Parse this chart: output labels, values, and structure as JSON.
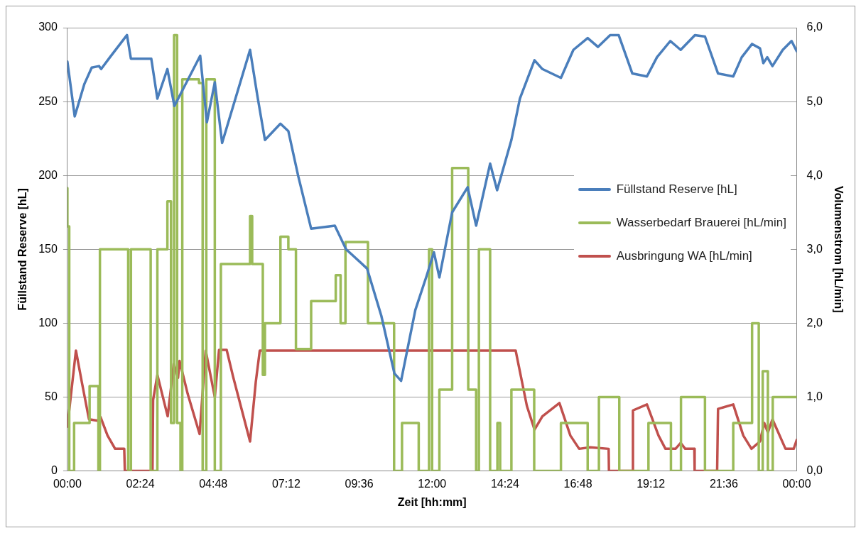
{
  "chart_data": {
    "type": "line",
    "xlabel": "Zeit [hh:mm]",
    "ylabel": "Füllstand Reserve [hL]",
    "y2label": "Volumenstrom [hL/min]",
    "xlim": [
      0,
      24
    ],
    "xticks": [
      {
        "value": 0,
        "label": "00:00"
      },
      {
        "value": 2.4,
        "label": "02:24"
      },
      {
        "value": 4.8,
        "label": "04:48"
      },
      {
        "value": 7.2,
        "label": "07:12"
      },
      {
        "value": 9.6,
        "label": "09:36"
      },
      {
        "value": 12,
        "label": "12:00"
      },
      {
        "value": 14.4,
        "label": "14:24"
      },
      {
        "value": 16.8,
        "label": "16:48"
      },
      {
        "value": 19.2,
        "label": "19:12"
      },
      {
        "value": 21.6,
        "label": "21:36"
      },
      {
        "value": 24,
        "label": "00:00"
      }
    ],
    "ylim": [
      0,
      300
    ],
    "yticks": [
      0,
      50,
      100,
      150,
      200,
      250,
      300
    ],
    "y2lim": [
      0,
      6
    ],
    "y2ticks": [
      {
        "value": 0,
        "label": "0,0"
      },
      {
        "value": 1,
        "label": "1,0"
      },
      {
        "value": 2,
        "label": "2,0"
      },
      {
        "value": 3,
        "label": "3,0"
      },
      {
        "value": 4,
        "label": "4,0"
      },
      {
        "value": 5,
        "label": "5,0"
      },
      {
        "value": 6,
        "label": "6,0"
      }
    ],
    "grid": "y",
    "legend": "right",
    "series": [
      {
        "name": "Füllstand Reserve [hL]",
        "color": "#4a7ebb",
        "type": "line",
        "x": [
          0,
          0.24,
          0.56,
          0.8,
          1.04,
          1.11,
          1.4,
          1.96,
          2.09,
          2.76,
          2.96,
          3.29,
          3.52,
          4.37,
          4.59,
          4.85,
          5.09,
          6.01,
          6.25,
          6.5,
          7.01,
          7.27,
          7.59,
          8.02,
          8.8,
          9.17,
          9.86,
          10.33,
          10.76,
          10.98,
          11.45,
          11.82,
          12.06,
          12.24,
          12.66,
          13.17,
          13.45,
          13.91,
          14.14,
          14.61,
          14.89,
          15.37,
          15.63,
          16.24,
          16.65,
          17.12,
          17.46,
          17.86,
          18.14,
          18.59,
          19.07,
          19.4,
          19.84,
          20.18,
          20.65,
          20.98,
          21.41,
          21.91,
          22.19,
          22.53,
          22.79,
          22.9,
          23.03,
          23.2,
          23.54,
          23.83,
          24
        ],
        "values": [
          277,
          240,
          262,
          273,
          274,
          272,
          280,
          295,
          279,
          279,
          252,
          272,
          247,
          281,
          236,
          263,
          222,
          285,
          254,
          224,
          235,
          230,
          200,
          164,
          166,
          150,
          137,
          105,
          66,
          61,
          109,
          132,
          148,
          131,
          175,
          192,
          166,
          208,
          190,
          224,
          252,
          278,
          272,
          266,
          285,
          293,
          287,
          295,
          295,
          269,
          267,
          280,
          291,
          285,
          295,
          294,
          269,
          267,
          280,
          289,
          286,
          276,
          280,
          274,
          285,
          291,
          284
        ]
      },
      {
        "name": "Wasserbedarf Brauerei [hL/min]",
        "color": "#9bbb59",
        "type": "step",
        "axis": "y2",
        "x": [
          0,
          0.06,
          0.22,
          0.73,
          1.02,
          1.07,
          2.0,
          2.09,
          2.74,
          2.96,
          3.29,
          3.41,
          3.51,
          3.61,
          3.72,
          3.78,
          4.33,
          4.45,
          4.57,
          4.85,
          5.05,
          6.01,
          6.08,
          6.43,
          6.5,
          7.01,
          7.27,
          7.52,
          8.02,
          8.83,
          8.99,
          9.15,
          9.89,
          10.75,
          11.01,
          11.56,
          11.9,
          12.0,
          12.24,
          12.66,
          13.19,
          13.45,
          13.54,
          13.91,
          14.15,
          14.24,
          14.61,
          15.36,
          16.24,
          17.12,
          17.49,
          18.16,
          19.12,
          19.86,
          20.19,
          20.98,
          21.91,
          22.53,
          22.75,
          22.88,
          23.05,
          23.21,
          23.81,
          24
        ],
        "values": [
          3.83,
          3.31,
          0,
          0.65,
          1.15,
          0,
          3,
          0,
          3,
          0,
          3,
          3.65,
          0.65,
          5.9,
          0.65,
          0,
          5.3,
          5.25,
          0,
          5.3,
          0,
          2.8,
          3.45,
          2.8,
          1.3,
          2,
          3.17,
          3,
          1.65,
          2.3,
          2.65,
          2,
          3.1,
          2,
          0,
          0.65,
          0,
          3,
          0,
          1.1,
          4.1,
          1.1,
          0,
          3,
          0,
          0.65,
          0,
          1.1,
          0,
          0.65,
          0,
          1,
          0,
          0.65,
          0,
          1,
          0,
          0.65,
          2,
          0,
          1.35,
          0,
          1,
          1
        ]
      },
      {
        "name": "Ausbringung WA [hL/min]",
        "color": "#c0504d",
        "type": "line",
        "axis": "y2",
        "x": [
          0,
          0.28,
          0.48,
          0.71,
          0.99,
          1.09,
          1.32,
          1.57,
          1.87,
          1.89,
          2.8,
          2.82,
          2.96,
          3.3,
          3.5,
          3.64,
          3.69,
          3.96,
          4.35,
          4.55,
          4.85,
          4.99,
          5.24,
          5.45,
          6.01,
          6.2,
          6.33,
          14.75,
          15.12,
          15.37,
          15.63,
          16.19,
          16.55,
          16.84,
          17.2,
          17.81,
          17.82,
          18.59,
          18.61,
          19.07,
          19.45,
          19.68,
          20.01,
          20.18,
          20.33,
          20.63,
          20.64,
          21.38,
          21.41,
          21.91,
          22.24,
          22.51,
          22.79,
          22.93,
          23.05,
          23.2,
          23.63,
          23.9,
          24
        ],
        "values": [
          0.6,
          1.63,
          1.19,
          0.7,
          0.68,
          0.73,
          0.48,
          0.3,
          0.3,
          0,
          0,
          0.96,
          1.3,
          0.74,
          1.45,
          1.26,
          1.49,
          1.04,
          0.5,
          1.63,
          1,
          1.64,
          1.64,
          1.28,
          0.4,
          1.21,
          1.63,
          1.63,
          0.88,
          0.56,
          0.74,
          0.92,
          0.48,
          0.3,
          0.32,
          0.3,
          0,
          0,
          0.82,
          0.9,
          0.48,
          0.3,
          0.3,
          0.38,
          0.3,
          0.3,
          0,
          0,
          0.84,
          0.9,
          0.48,
          0.3,
          0.4,
          0.65,
          0.52,
          0.7,
          0.3,
          0.3,
          0.42
        ]
      }
    ]
  }
}
